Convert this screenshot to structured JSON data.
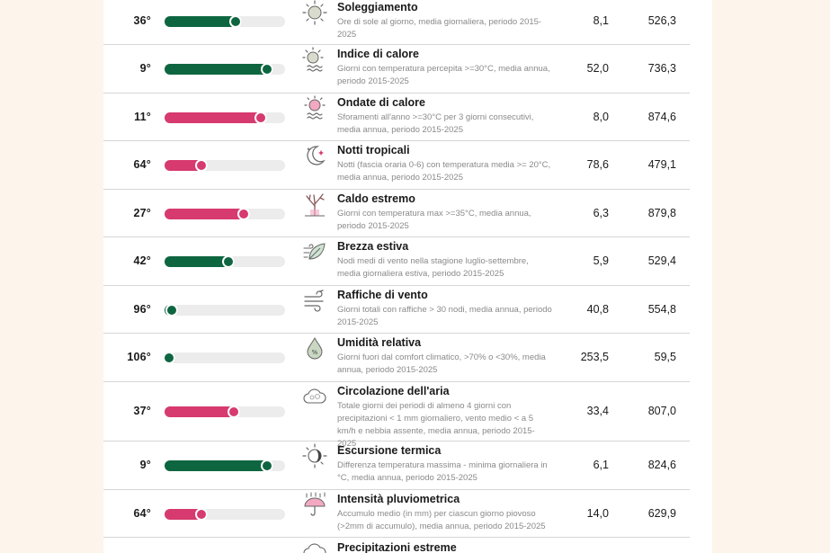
{
  "colors": {
    "green": "#0e6641",
    "pink": "#d63a6e",
    "track": "#ececec"
  },
  "rows": [
    {
      "rank": "36°",
      "title": "Soleggiamento",
      "desc": "Ore di sole al giorno, media giornaliera, periodo 2015-2025",
      "v1": "8,1",
      "v2": "526,3",
      "level": 0.64,
      "color": "green",
      "icon": "sun-icon"
    },
    {
      "rank": "9°",
      "title": "Indice di calore",
      "desc": "Giorni con temperatura percepita >=30°C, media annua, periodo 2015-2025",
      "v1": "52,0",
      "v2": "736,3",
      "level": 0.9,
      "color": "green",
      "icon": "heat-index-icon"
    },
    {
      "rank": "11°",
      "title": "Ondate di calore",
      "desc": "Sforamenti all'anno >=30°C per 3 giorni consecutivi, media annua, periodo 2015-2025",
      "v1": "8,0",
      "v2": "874,6",
      "level": 0.85,
      "color": "pink",
      "icon": "heatwave-icon"
    },
    {
      "rank": "64°",
      "title": "Notti tropicali",
      "desc": "Notti (fascia oraria 0-6) con temperatura media >= 20°C, media annua, periodo 2015-2025",
      "v1": "78,6",
      "v2": "479,1",
      "level": 0.36,
      "color": "pink",
      "icon": "moon-icon"
    },
    {
      "rank": "27°",
      "title": "Caldo estremo",
      "desc": "Giorni con temperatura max >=35°C, media annua, periodo 2015-2025",
      "v1": "6,3",
      "v2": "879,8",
      "level": 0.71,
      "color": "pink",
      "icon": "dry-tree-icon"
    },
    {
      "rank": "42°",
      "title": "Brezza estiva",
      "desc": "Nodi medi di vento nella stagione luglio-settembre, media giornaliera estiva, periodo 2015-2025",
      "v1": "5,9",
      "v2": "529,4",
      "level": 0.58,
      "color": "green",
      "icon": "breeze-leaf-icon"
    },
    {
      "rank": "96°",
      "title": "Raffiche di vento",
      "desc": "Giorni totali con raffiche > 30 nodi, media annua, periodo 2015-2025",
      "v1": "40,8",
      "v2": "554,8",
      "level": 0.11,
      "color": "green",
      "icon": "wind-icon"
    },
    {
      "rank": "106°",
      "title": "Umidità relativa",
      "desc": "Giorni fuori dal comfort climatico, >70% o <30%, media annua, periodo 2015-2025",
      "v1": "253,5",
      "v2": "59,5",
      "level": 0.04,
      "color": "green",
      "icon": "humidity-drop-icon"
    },
    {
      "rank": "37°",
      "title": "Circolazione dell'aria",
      "desc": "Totale giorni dei periodi di almeno 4 giorni con precipitazioni < 1 mm giornaliero, vento medio < a 5 km/h e nebbia assente, media annua, periodo 2015-2025",
      "v1": "33,4",
      "v2": "807,0",
      "level": 0.63,
      "color": "pink",
      "icon": "cloud-icon"
    },
    {
      "rank": "9°",
      "title": "Escursione termica",
      "desc": "Differenza temperatura massima - minima giornaliera in °C, media annua, periodo 2015-2025",
      "v1": "6,1",
      "v2": "824,6",
      "level": 0.9,
      "color": "green",
      "icon": "day-night-icon"
    },
    {
      "rank": "64°",
      "title": "Intensità pluviometrica",
      "desc": "Accumulo medio (in mm) per ciascun giorno piovoso (>2mm di accumulo), media annua, periodo 2015-2025",
      "v1": "14,0",
      "v2": "629,9",
      "level": 0.36,
      "color": "pink",
      "icon": "umbrella-rain-icon"
    },
    {
      "rank": "",
      "title": "Precipitazioni estreme",
      "desc": "",
      "v1": "",
      "v2": "",
      "level": null,
      "color": "pink",
      "icon": "storm-cloud-icon"
    }
  ]
}
